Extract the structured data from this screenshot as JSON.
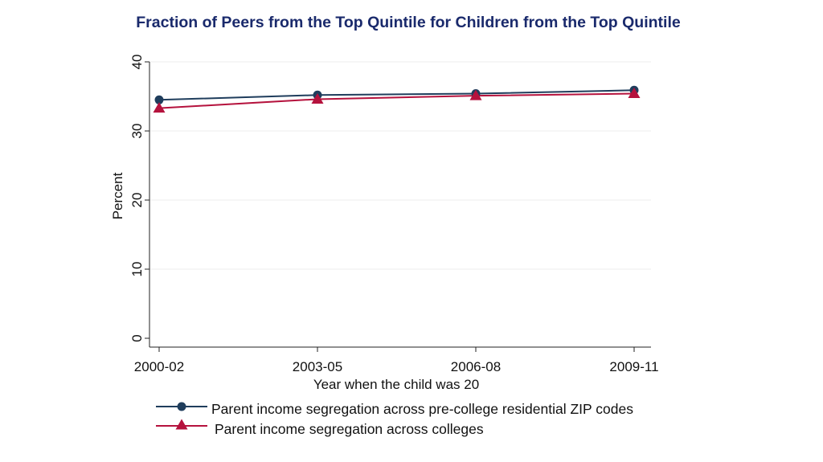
{
  "chart_data": {
    "type": "line",
    "title": "Fraction of Peers from the Top Quintile for Children from the Top Quintile",
    "xlabel": "Year when the child was 20",
    "ylabel": "Percent",
    "categories": [
      "2000-02",
      "2003-05",
      "2006-08",
      "2009-11"
    ],
    "ylim": [
      0,
      40
    ],
    "yticks": [
      "0",
      "10",
      "20",
      "30",
      "40"
    ],
    "grid": true,
    "legend_position": "bottom",
    "series": [
      {
        "name": "Parent income segregation across pre-college residential ZIP codes",
        "values": [
          34.5,
          35.2,
          35.4,
          35.9
        ],
        "color": "#1f3d5c",
        "marker": "circle"
      },
      {
        "name": "Parent income segregation across colleges",
        "values": [
          33.3,
          34.6,
          35.1,
          35.4
        ],
        "color": "#b5123d",
        "marker": "triangle"
      }
    ]
  }
}
